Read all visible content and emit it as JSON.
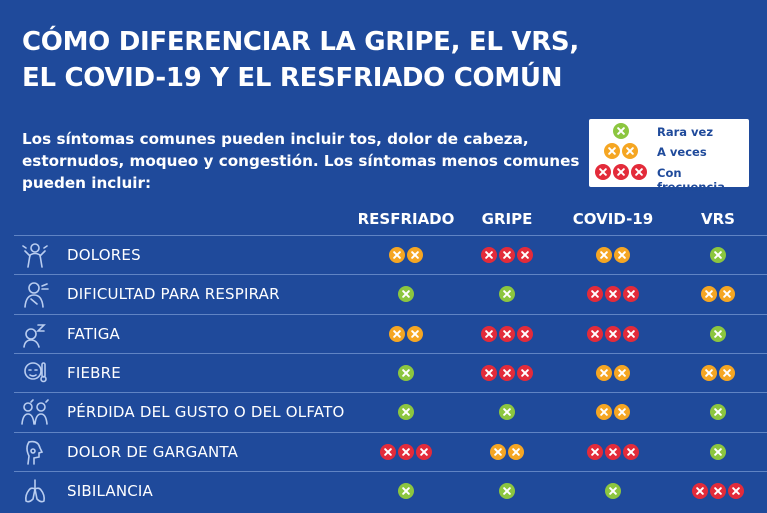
{
  "title_lines": [
    "CÓMO DIFERENCIAR LA GRIPE, EL VRS,",
    "EL COVID-19 Y EL RESFRIADO COMÚN"
  ],
  "intro_text": "Los síntomas comunes pueden incluir tos, dolor de cabeza, estornudos, moqueo y congestión. Los síntomas menos comunes pueden incluir:",
  "legend": [
    {
      "label": "Rara vez",
      "count": 1,
      "color": "#8cc63f"
    },
    {
      "label": "A veces",
      "count": 2,
      "color": "#f5a623"
    },
    {
      "label": "Con frecuencia",
      "count": 3,
      "color": "#e32b3a"
    }
  ],
  "columns": [
    "RESFRIADO",
    "GRIPE",
    "COVID-19",
    "VRS"
  ],
  "rows": [
    {
      "label": "DOLORES",
      "icon": "aches-icon",
      "levels": [
        2,
        3,
        2,
        1
      ]
    },
    {
      "label": "DIFICULTAD PARA RESPIRAR",
      "icon": "breathing-difficulty-icon",
      "levels": [
        1,
        1,
        3,
        2
      ]
    },
    {
      "label": "FATIGA",
      "icon": "fatigue-icon",
      "levels": [
        2,
        3,
        3,
        1
      ]
    },
    {
      "label": "FIEBRE",
      "icon": "fever-icon",
      "levels": [
        1,
        3,
        2,
        2
      ]
    },
    {
      "label": "PÉRDIDA DEL GUSTO O DEL OLFATO",
      "icon": "taste-smell-loss-icon",
      "levels": [
        1,
        1,
        2,
        1
      ]
    },
    {
      "label": "DOLOR DE GARGANTA",
      "icon": "sore-throat-icon",
      "levels": [
        3,
        2,
        3,
        1
      ]
    },
    {
      "label": "SIBILANCIA",
      "icon": "wheezing-lungs-icon",
      "levels": [
        1,
        1,
        1,
        3
      ]
    }
  ],
  "colors": {
    "background": "#1f4a9b",
    "rare": "#8cc63f",
    "sometimes": "#f5a623",
    "frequent": "#e32b3a"
  }
}
